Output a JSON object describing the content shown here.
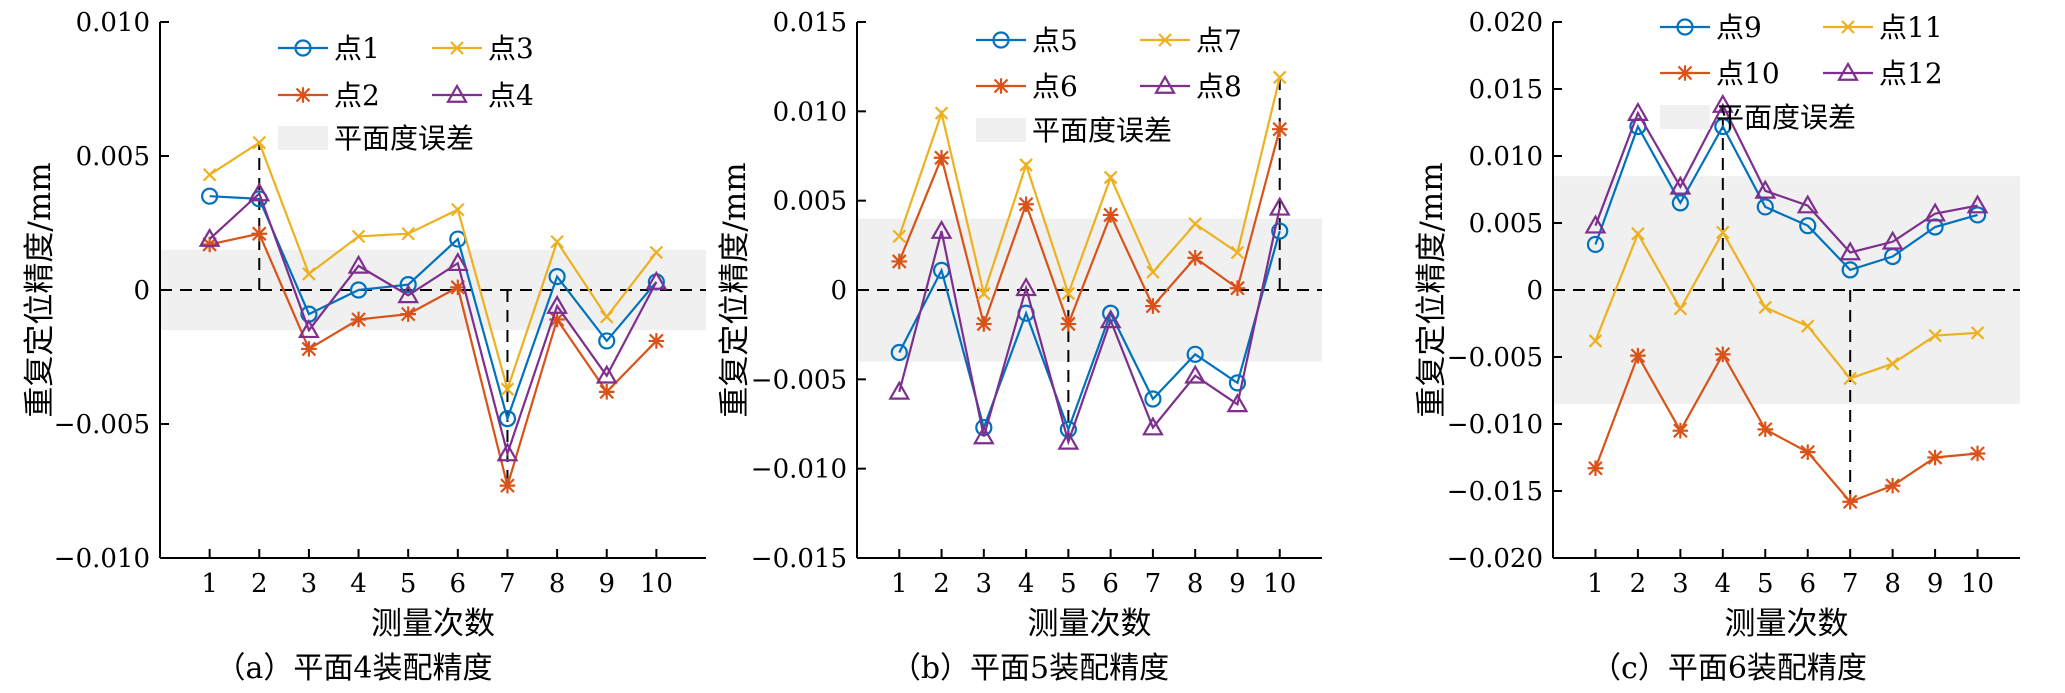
{
  "colors": {
    "blue": "#0072BD",
    "orange": "#D95319",
    "yellow": "#EDB120",
    "purple": "#7E2F8E",
    "band": "#f0f0f0",
    "axis": "#000000"
  },
  "chart_data": [
    {
      "type": "line",
      "caption": "（a）平面4装配精度",
      "xlabel": "测量次数",
      "ylabel": "重复定位精度/mm",
      "categories": [
        1,
        2,
        3,
        4,
        5,
        6,
        7,
        8,
        9,
        10
      ],
      "xlim": [
        0,
        11
      ],
      "ylim": [
        -0.01,
        0.01
      ],
      "yticks": [
        -0.01,
        -0.005,
        0,
        0.005,
        0.01
      ],
      "ytick_labels": [
        "−0.010",
        "−0.005",
        "0",
        "0.005",
        "0.010"
      ],
      "band": {
        "label": "平面度误差",
        "range": [
          -0.0015,
          0.0015
        ]
      },
      "series": [
        {
          "name": "点1",
          "marker": "circle",
          "color": "#0072BD",
          "values": [
            0.0035,
            0.0034,
            -0.0009,
            0.0,
            0.0002,
            0.0019,
            -0.0048,
            0.0005,
            -0.0019,
            0.0003
          ]
        },
        {
          "name": "点2",
          "marker": "asterisk",
          "color": "#D95319",
          "values": [
            0.0017,
            0.0021,
            -0.0022,
            -0.0011,
            -0.0009,
            0.0001,
            -0.0073,
            -0.0011,
            -0.0038,
            -0.0019
          ]
        },
        {
          "name": "点3",
          "marker": "x",
          "color": "#EDB120",
          "values": [
            0.0043,
            0.0055,
            0.0006,
            0.002,
            0.0021,
            0.003,
            -0.0037,
            0.0018,
            -0.001,
            0.0014
          ]
        },
        {
          "name": "点4",
          "marker": "triangle",
          "color": "#7E2F8E",
          "values": [
            0.0019,
            0.0036,
            -0.0015,
            0.0009,
            -0.0002,
            0.001,
            -0.0061,
            -0.0006,
            -0.0032,
            0.0003
          ]
        }
      ],
      "legend": {
        "placement": "top",
        "columns": 2
      },
      "annotations": [
        {
          "x": 2,
          "y": 0.0055
        },
        {
          "x": 7,
          "y": -0.0073
        }
      ]
    },
    {
      "type": "line",
      "caption": "（b）平面5装配精度",
      "xlabel": "测量次数",
      "ylabel": "重复定位精度/mm",
      "categories": [
        1,
        2,
        3,
        4,
        5,
        6,
        7,
        8,
        9,
        10
      ],
      "xlim": [
        0,
        11
      ],
      "ylim": [
        -0.015,
        0.015
      ],
      "yticks": [
        -0.015,
        -0.01,
        -0.005,
        0,
        0.005,
        0.01,
        0.015
      ],
      "ytick_labels": [
        "−0.015",
        "−0.010",
        "−0.005",
        "0",
        "0.005",
        "0.010",
        "0.015"
      ],
      "band": {
        "label": "平面度误差",
        "range": [
          -0.004,
          0.004
        ]
      },
      "series": [
        {
          "name": "点5",
          "marker": "circle",
          "color": "#0072BD",
          "values": [
            -0.0035,
            0.0011,
            -0.0077,
            -0.0013,
            -0.0078,
            -0.0013,
            -0.0061,
            -0.0036,
            -0.0052,
            0.0033
          ]
        },
        {
          "name": "点6",
          "marker": "asterisk",
          "color": "#D95319",
          "values": [
            0.0016,
            0.0074,
            -0.0019,
            0.0048,
            -0.0019,
            0.0042,
            -0.0009,
            0.0018,
            0.0001,
            0.009
          ]
        },
        {
          "name": "点7",
          "marker": "x",
          "color": "#EDB120",
          "values": [
            0.003,
            0.0099,
            -0.0002,
            0.007,
            -0.0002,
            0.0063,
            0.001,
            0.0037,
            0.0021,
            0.0119
          ]
        },
        {
          "name": "点8",
          "marker": "triangle",
          "color": "#7E2F8E",
          "values": [
            -0.0057,
            0.0033,
            -0.0082,
            0.0001,
            -0.0085,
            -0.0017,
            -0.0077,
            -0.0048,
            -0.0064,
            0.0046
          ]
        }
      ],
      "legend": {
        "placement": "top",
        "columns": 2
      },
      "annotations": [
        {
          "x": 5,
          "y": -0.0085
        },
        {
          "x": 10,
          "y": 0.0119
        }
      ]
    },
    {
      "type": "line",
      "caption": "（c）平面6装配精度",
      "xlabel": "测量次数",
      "ylabel": "重复定位精度/mm",
      "categories": [
        1,
        2,
        3,
        4,
        5,
        6,
        7,
        8,
        9,
        10
      ],
      "xlim": [
        0,
        11
      ],
      "ylim": [
        -0.02,
        0.02
      ],
      "yticks": [
        -0.02,
        -0.015,
        -0.01,
        -0.005,
        0,
        0.005,
        0.01,
        0.015,
        0.02
      ],
      "ytick_labels": [
        "−0.020",
        "−0.015",
        "−0.010",
        "−0.005",
        "0",
        "0.005",
        "0.010",
        "0.015",
        "0.020"
      ],
      "band": {
        "label": "平面度误差",
        "range": [
          -0.0085,
          0.0085
        ]
      },
      "series": [
        {
          "name": "点9",
          "marker": "circle",
          "color": "#0072BD",
          "values": [
            0.0034,
            0.0122,
            0.0065,
            0.0122,
            0.0062,
            0.0048,
            0.0015,
            0.0025,
            0.0047,
            0.0056
          ]
        },
        {
          "name": "点10",
          "marker": "asterisk",
          "color": "#D95319",
          "values": [
            -0.0133,
            -0.0049,
            -0.0105,
            -0.0048,
            -0.0104,
            -0.0121,
            -0.0158,
            -0.0146,
            -0.0125,
            -0.0122
          ]
        },
        {
          "name": "点11",
          "marker": "x",
          "color": "#EDB120",
          "values": [
            -0.0038,
            0.0042,
            -0.0014,
            0.0043,
            -0.0013,
            -0.0027,
            -0.0066,
            -0.0055,
            -0.0034,
            -0.0032
          ]
        },
        {
          "name": "点12",
          "marker": "triangle",
          "color": "#7E2F8E",
          "values": [
            0.0048,
            0.0132,
            0.0077,
            0.0138,
            0.0074,
            0.0063,
            0.0028,
            0.0036,
            0.0057,
            0.0063
          ]
        }
      ],
      "legend": {
        "placement": "top",
        "columns": 2
      },
      "annotations": [
        {
          "x": 4,
          "y": 0.0138
        },
        {
          "x": 7,
          "y": -0.0158
        }
      ]
    }
  ]
}
